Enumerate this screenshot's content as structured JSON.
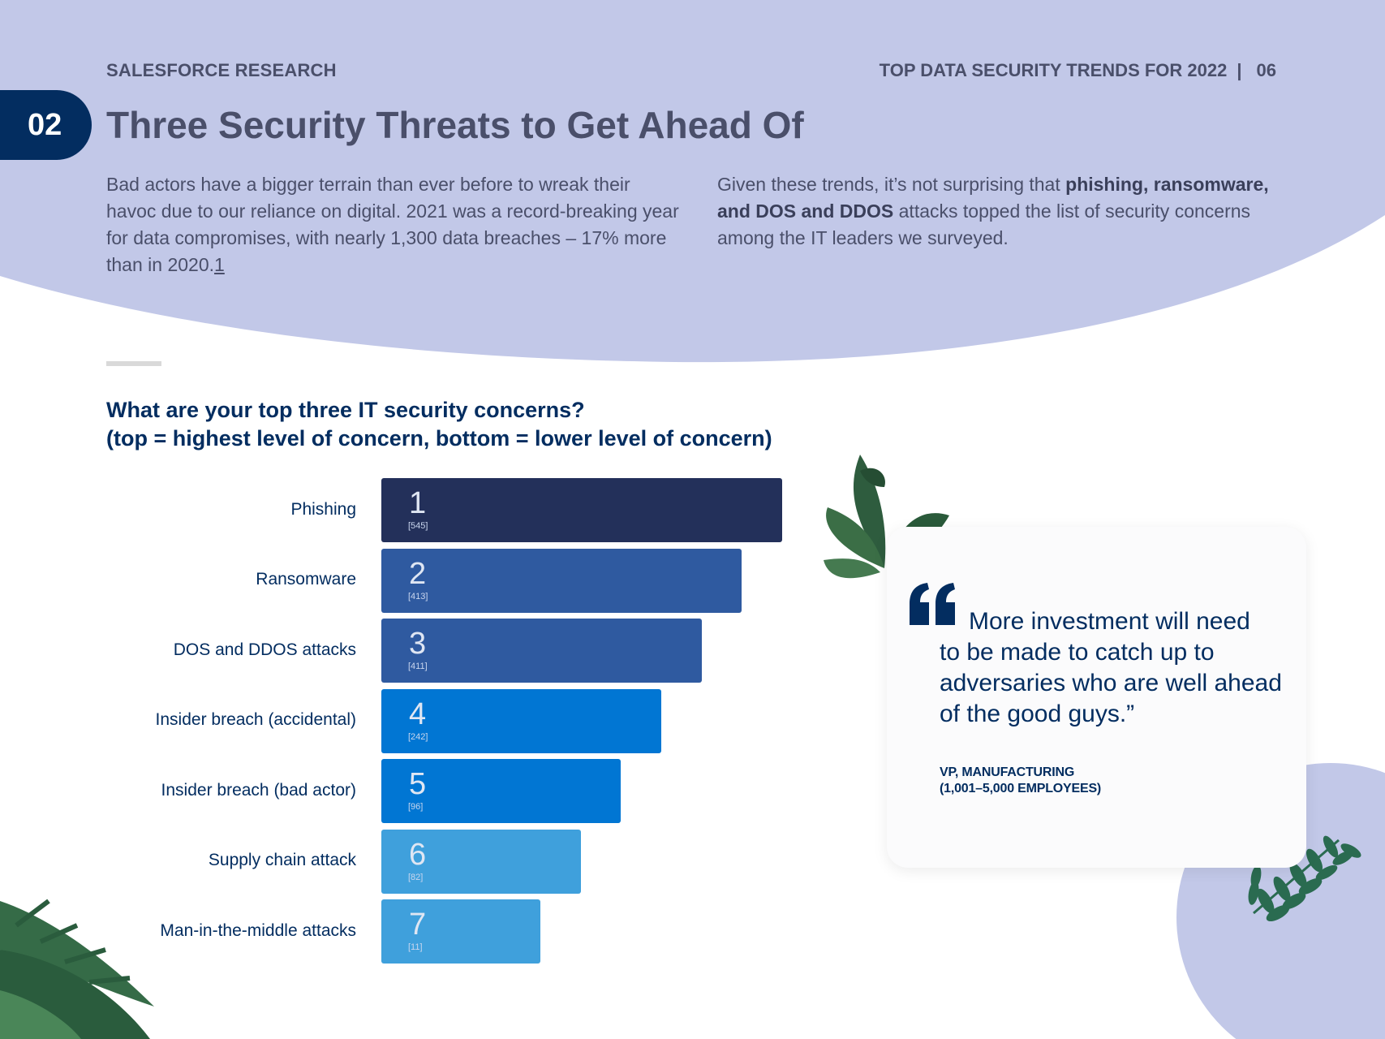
{
  "header": {
    "brand": "SALESFORCE RESEARCH",
    "report_title": "TOP DATA SECURITY TRENDS FOR 2022",
    "separator": "|",
    "page_number": "06"
  },
  "section": {
    "number": "02",
    "title": "Three Security Threats to Get Ahead Of"
  },
  "intro": {
    "left_text": "Bad actors have a bigger terrain than ever before to wreak their havoc due to our reliance on digital. 2021 was a record-breaking year for data compromises, with nearly 1,300 data breaches – 17% more than in 2020.",
    "left_footnote": "1",
    "right_prefix": "Given these trends, it’s not surprising that ",
    "right_bold": "phishing, ransomware, and DOS and DDOS",
    "right_suffix": " attacks topped the list of security concerns among the IT leaders we surveyed."
  },
  "chart_data": {
    "type": "bar",
    "orientation": "horizontal",
    "title": "What are your top three IT security concerns?",
    "subtitle": "(top = highest level of concern, bottom = lower level of concern)",
    "categories": [
      "Phishing",
      "Ransomware",
      "DOS and DDOS attacks",
      "Insider breach (accidental)",
      "Insider breach (bad actor)",
      "Supply chain attack",
      "Man-in-the-middle attacks"
    ],
    "ranks": [
      "1",
      "2",
      "3",
      "4",
      "5",
      "6",
      "7"
    ],
    "count_labels": [
      "[545]",
      "[413]",
      "[411]",
      "[242]",
      "[96]",
      "[82]",
      "[11]"
    ],
    "values": [
      545,
      413,
      411,
      242,
      96,
      82,
      11
    ],
    "colors": [
      "#23305a",
      "#2f5aa0",
      "#2f5aa0",
      "#0176d3",
      "#0176d3",
      "#3fa0dc",
      "#3fa0dc"
    ]
  },
  "quote": {
    "text_first": "More investment will need",
    "text_rest": "to be made to catch up to adversaries who are well ahead of the good guys.”",
    "attribution_role": "VP, MANUFACTURING",
    "attribution_size": "(1,001–5,000 EMPLOYEES)"
  },
  "colors": {
    "header_band": "#c2c8e8",
    "navy": "#032d60",
    "gray_text": "#4a4f6a",
    "leaf_green": "#2e5c3e"
  }
}
